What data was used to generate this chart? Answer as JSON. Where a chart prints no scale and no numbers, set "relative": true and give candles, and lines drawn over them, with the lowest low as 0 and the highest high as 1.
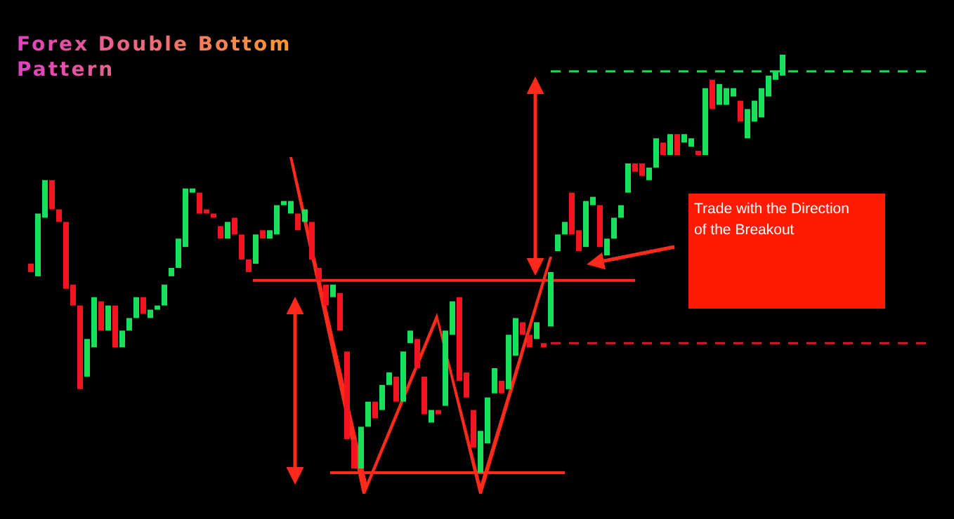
{
  "chart_data": {
    "type": "candlestick",
    "title": "Forex Double Bottom Pattern",
    "relative": true,
    "categories": [
      null,
      null,
      null,
      null,
      null,
      null,
      null,
      null,
      null,
      null,
      null,
      null,
      null,
      null,
      null,
      null,
      null,
      null,
      null,
      null,
      null,
      null,
      null,
      null,
      null,
      null,
      null,
      null,
      null,
      null,
      null,
      null,
      null,
      null,
      null,
      null,
      null,
      null,
      null,
      null,
      null,
      null,
      null,
      null,
      null,
      null,
      null,
      null,
      null,
      null,
      null,
      null,
      null,
      null,
      null,
      null,
      null,
      null,
      null,
      null,
      null,
      null,
      null,
      null,
      null,
      null,
      null,
      null,
      null,
      null,
      null,
      null,
      null,
      null,
      null,
      null,
      null,
      null,
      null,
      null,
      null,
      null,
      null,
      null,
      null,
      null,
      null,
      null,
      null,
      null,
      null,
      null,
      null,
      null,
      null,
      null,
      null,
      null,
      null,
      null,
      null,
      null,
      null,
      null,
      null,
      null,
      null,
      null
    ],
    "ohlc": [
      [
        0.5,
        0.5,
        0.48,
        0.48
      ],
      [
        0.47,
        0.62,
        0.47,
        0.62
      ],
      [
        0.61,
        0.7,
        0.61,
        0.7
      ],
      [
        0.7,
        0.7,
        0.63,
        0.63
      ],
      [
        0.63,
        0.63,
        0.6,
        0.6
      ],
      [
        0.6,
        0.6,
        0.44,
        0.44
      ],
      [
        0.45,
        0.45,
        0.4,
        0.4
      ],
      [
        0.4,
        0.4,
        0.2,
        0.2
      ],
      [
        0.23,
        0.32,
        0.23,
        0.32
      ],
      [
        0.3,
        0.42,
        0.3,
        0.42
      ],
      [
        0.41,
        0.41,
        0.34,
        0.34
      ],
      [
        0.34,
        0.4,
        0.34,
        0.4
      ],
      [
        0.4,
        0.4,
        0.3,
        0.3
      ],
      [
        0.3,
        0.34,
        0.3,
        0.34
      ],
      [
        0.34,
        0.37,
        0.34,
        0.37
      ],
      [
        0.37,
        0.42,
        0.37,
        0.42
      ],
      [
        0.42,
        0.42,
        0.38,
        0.38
      ],
      [
        0.37,
        0.39,
        0.37,
        0.39
      ],
      [
        0.39,
        0.4,
        0.39,
        0.4
      ],
      [
        0.4,
        0.45,
        0.4,
        0.45
      ],
      [
        0.47,
        0.49,
        0.47,
        0.49
      ],
      [
        0.49,
        0.56,
        0.49,
        0.56
      ],
      [
        0.54,
        0.68,
        0.54,
        0.68
      ],
      [
        0.67,
        0.68,
        0.67,
        0.68
      ],
      [
        0.67,
        0.67,
        0.62,
        0.62
      ],
      [
        0.63,
        0.63,
        0.62,
        0.62
      ],
      [
        0.62,
        0.62,
        0.61,
        0.61
      ],
      [
        0.59,
        0.59,
        0.56,
        0.56
      ],
      [
        0.56,
        0.6,
        0.56,
        0.6
      ],
      [
        0.61,
        0.61,
        0.57,
        0.57
      ],
      [
        0.57,
        0.57,
        0.51,
        0.51
      ],
      [
        0.51,
        0.51,
        0.48,
        0.48
      ],
      [
        0.5,
        0.57,
        0.5,
        0.57
      ],
      [
        0.58,
        0.58,
        0.56,
        0.56
      ],
      [
        0.56,
        0.58,
        0.56,
        0.58
      ],
      [
        0.57,
        0.64,
        0.57,
        0.64
      ],
      [
        0.64,
        0.65,
        0.64,
        0.65
      ],
      [
        0.62,
        0.65,
        0.62,
        0.65
      ],
      [
        0.62,
        0.62,
        0.58,
        0.58
      ],
      [
        0.6,
        0.63,
        0.6,
        0.63
      ],
      [
        0.6,
        0.6,
        0.51,
        0.51
      ],
      [
        0.49,
        0.49,
        0.46,
        0.46
      ],
      [
        0.45,
        0.45,
        0.4,
        0.4
      ],
      [
        0.42,
        0.45,
        0.42,
        0.45
      ],
      [
        0.43,
        0.43,
        0.34,
        0.34
      ],
      [
        0.29,
        0.29,
        0.08,
        0.08
      ],
      [
        0.08,
        0.08,
        0.01,
        0.01
      ],
      [
        0.01,
        0.11,
        0.01,
        0.11
      ],
      [
        0.11,
        0.17,
        0.11,
        0.17
      ],
      [
        0.17,
        0.17,
        0.13,
        0.13
      ],
      [
        0.15,
        0.21,
        0.15,
        0.21
      ],
      [
        0.21,
        0.24,
        0.21,
        0.24
      ],
      [
        0.23,
        0.23,
        0.17,
        0.17
      ],
      [
        0.17,
        0.29,
        0.17,
        0.29
      ],
      [
        0.31,
        0.34,
        0.31,
        0.34
      ],
      [
        0.32,
        0.32,
        0.25,
        0.25
      ],
      [
        0.23,
        0.23,
        0.14,
        0.14
      ],
      [
        0.12,
        0.15,
        0.12,
        0.15
      ],
      [
        0.15,
        0.15,
        0.14,
        0.14
      ],
      [
        0.16,
        0.34,
        0.16,
        0.34
      ],
      [
        0.33,
        0.41,
        0.33,
        0.41
      ],
      [
        0.42,
        0.42,
        0.22,
        0.22
      ],
      [
        0.24,
        0.24,
        0.18,
        0.18
      ],
      [
        0.15,
        0.15,
        0.06,
        0.06
      ],
      [
        0,
        0.1,
        0,
        0.1
      ],
      [
        0.07,
        0.18,
        0.07,
        0.18
      ],
      [
        0.19,
        0.25,
        0.19,
        0.25
      ],
      [
        0.22,
        0.22,
        0.19,
        0.19
      ],
      [
        0.2,
        0.33,
        0.2,
        0.33
      ],
      [
        0.28,
        0.37,
        0.28,
        0.37
      ],
      [
        0.36,
        0.36,
        0.33,
        0.33
      ],
      [
        0.33,
        0.33,
        0.3,
        0.3
      ],
      [
        0.32,
        0.36,
        0.32,
        0.36
      ],
      [
        0.31,
        0.31,
        0.3,
        0.3
      ],
      [
        0.35,
        0.48,
        0.35,
        0.48
      ],
      [
        0.53,
        0.57,
        0.53,
        0.57
      ],
      [
        0.57,
        0.6,
        0.57,
        0.6
      ],
      [
        0.67,
        0.67,
        0.57,
        0.57
      ],
      [
        0.58,
        0.58,
        0.53,
        0.53
      ],
      [
        0.54,
        0.65,
        0.54,
        0.65
      ],
      [
        0.64,
        0.66,
        0.64,
        0.66
      ],
      [
        0.64,
        0.64,
        0.54,
        0.54
      ],
      [
        0.52,
        0.56,
        0.52,
        0.56
      ],
      [
        0.56,
        0.61,
        0.56,
        0.61
      ],
      [
        0.61,
        0.64,
        0.61,
        0.64
      ],
      [
        0.67,
        0.74,
        0.67,
        0.74
      ],
      [
        0.74,
        0.74,
        0.72,
        0.72
      ],
      [
        0.74,
        0.74,
        0.71,
        0.71
      ],
      [
        0.7,
        0.73,
        0.7,
        0.73
      ],
      [
        0.73,
        0.8,
        0.73,
        0.8
      ],
      [
        0.79,
        0.79,
        0.76,
        0.76
      ],
      [
        0.76,
        0.81,
        0.76,
        0.81
      ],
      [
        0.81,
        0.81,
        0.76,
        0.76
      ],
      [
        0.79,
        0.81,
        0.79,
        0.81
      ],
      [
        0.78,
        0.8,
        0.78,
        0.8
      ],
      [
        0.77,
        0.77,
        0.76,
        0.76
      ],
      [
        0.76,
        0.92,
        0.76,
        0.92
      ],
      [
        0.94,
        0.94,
        0.87,
        0.87
      ],
      [
        0.88,
        0.93,
        0.88,
        0.93
      ],
      [
        0.88,
        0.92,
        0.88,
        0.92
      ],
      [
        0.9,
        0.92,
        0.9,
        0.92
      ],
      [
        0.89,
        0.89,
        0.84,
        0.84
      ],
      [
        0.8,
        0.87,
        0.8,
        0.87
      ],
      [
        0.84,
        0.89,
        0.84,
        0.89
      ],
      [
        0.85,
        0.92,
        0.85,
        0.92
      ],
      [
        0.9,
        0.95,
        0.9,
        0.95
      ],
      [
        0.94,
        0.96,
        0.94,
        0.96
      ],
      [
        0.95,
        1,
        0.95,
        1
      ]
    ],
    "ref_lines": [
      {
        "axis": "y",
        "value": 0.96,
        "color": "#1fd655",
        "line_style": "dashed"
      },
      {
        "axis": "y",
        "value": 0.31,
        "color": "#e0142a",
        "line_style": "dashed"
      },
      {
        "axis": "y",
        "value": 0.46,
        "color": "#ff2a1a",
        "line_style": "solid"
      },
      {
        "axis": "y",
        "value": 0,
        "color": "#ff2a1a",
        "line_style": "solid"
      }
    ],
    "annotations": [
      "Trade with the Direction of the Breakout"
    ]
  }
}
